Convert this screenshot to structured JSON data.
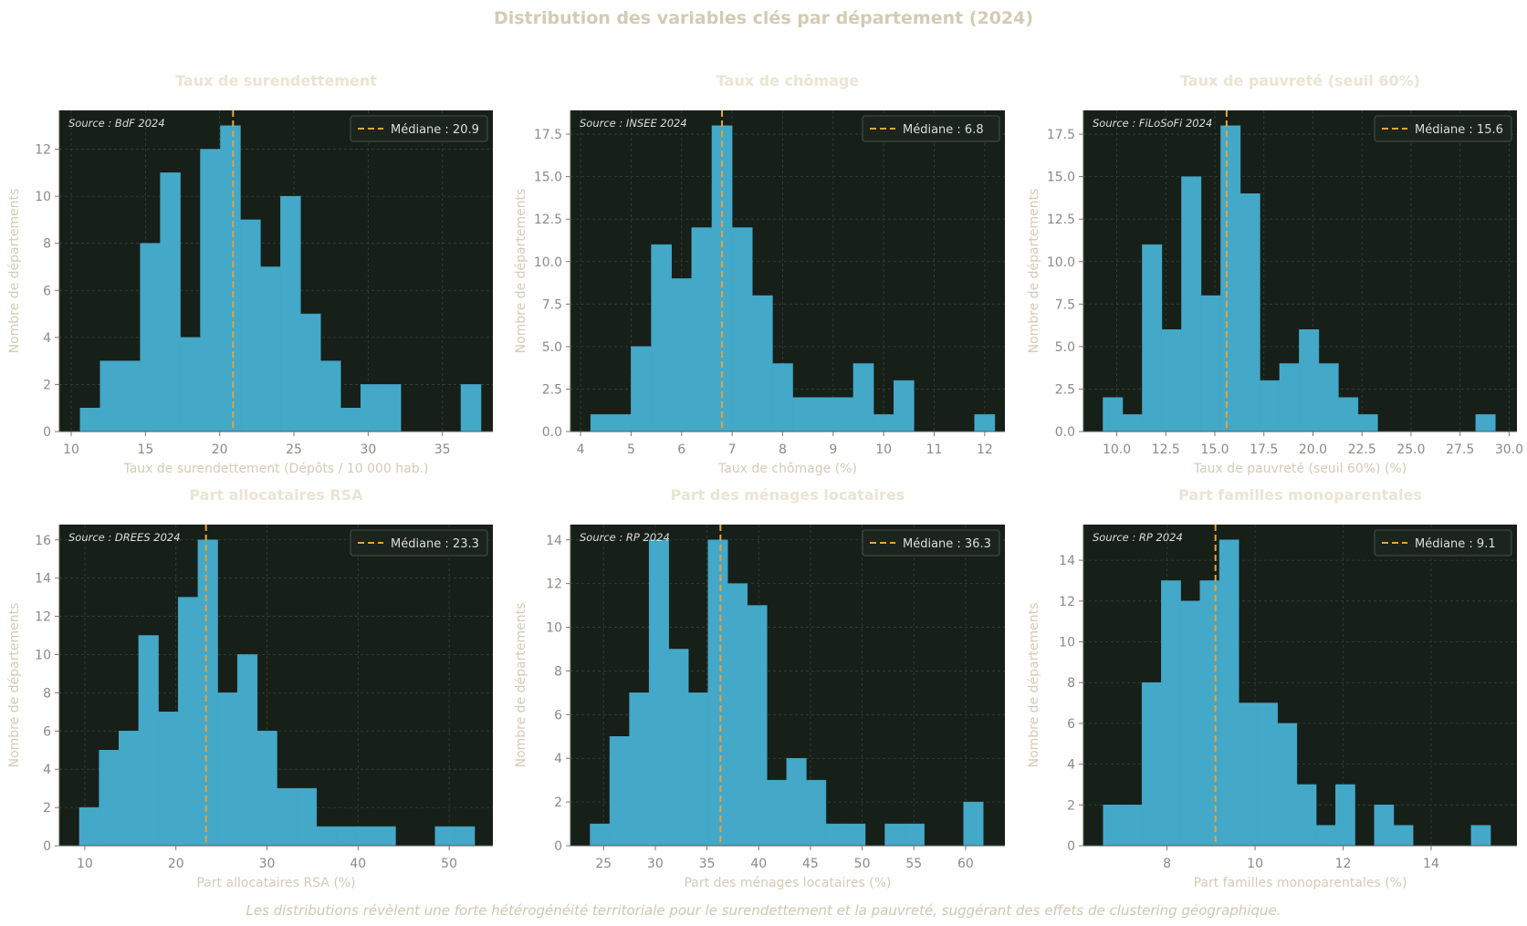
{
  "figure": {
    "suptitle": "Distribution des variables clés par département (2024)",
    "footnote": "Les distributions révèlent une forte hétérogénéité territoriale pour le surendettement et la pauvreté, suggérant des effets de clustering géographique.",
    "colors": {
      "panel_background": "#161f18",
      "bar_fill": "#44a8c8",
      "median_line": "#e8a33a",
      "grid": "#31473a",
      "tick_text": "#8a8a86",
      "label_text": "#d2cbb6",
      "title_text": "#ebe4d2",
      "legend_text": "#dddddd"
    }
  },
  "chart_data": [
    {
      "type": "histogram",
      "title": "Taux de surendettement",
      "xlabel": "Taux de surendettement (Dépôts / 10 000 hab.)",
      "ylabel": "Nombre de départements",
      "source": "Source : BdF 2024",
      "median": 20.9,
      "legend": "Médiane : 20.9",
      "legend_position": "top-right",
      "grid": true,
      "xlim": [
        9.2,
        38.4
      ],
      "ylim": [
        0,
        13.65
      ],
      "xticks": [
        10,
        15,
        20,
        25,
        30,
        35
      ],
      "yticks": [
        0,
        2,
        4,
        6,
        8,
        10,
        12
      ],
      "bin_edges": [
        10.6,
        11.95,
        13.3,
        14.65,
        16.0,
        17.35,
        18.7,
        20.05,
        21.4,
        22.75,
        24.1,
        25.45,
        26.8,
        28.15,
        29.5,
        30.85,
        32.2,
        33.55,
        34.9,
        36.25,
        37.6
      ],
      "counts": [
        1,
        3,
        3,
        8,
        11,
        4,
        12,
        13,
        9,
        7,
        10,
        5,
        3,
        1,
        2,
        2,
        0,
        0,
        0,
        2
      ]
    },
    {
      "type": "histogram",
      "title": "Taux de chômage",
      "xlabel": "Taux de chômage (%)",
      "ylabel": "Nombre de départements",
      "source": "Source : INSEE 2024",
      "median": 6.8,
      "legend": "Médiane : 6.8",
      "legend_position": "top-right",
      "grid": true,
      "xlim": [
        3.8,
        12.4
      ],
      "ylim": [
        0,
        18.9
      ],
      "xticks": [
        4,
        5,
        6,
        7,
        8,
        9,
        10,
        11,
        12
      ],
      "xtick_labels": [
        "4",
        "5",
        "6",
        "7",
        "8",
        "9",
        "10",
        "11",
        "12"
      ],
      "yticks": [
        0,
        2.5,
        5,
        7.5,
        10,
        12.5,
        15,
        17.5
      ],
      "ytick_labels": [
        "0.0",
        "2.5",
        "5.0",
        "7.5",
        "10.0",
        "12.5",
        "15.0",
        "17.5"
      ],
      "bin_edges": [
        4.2,
        4.6,
        5.0,
        5.4,
        5.8,
        6.2,
        6.6,
        7.0,
        7.4,
        7.8,
        8.2,
        8.6,
        9.0,
        9.4,
        9.8,
        10.2,
        10.6,
        11.0,
        11.4,
        11.8,
        12.2
      ],
      "counts": [
        1,
        1,
        5,
        11,
        9,
        12,
        18,
        12,
        8,
        4,
        2,
        2,
        2,
        4,
        1,
        3,
        0,
        0,
        0,
        1
      ]
    },
    {
      "type": "histogram",
      "title": "Taux de pauvreté (seuil 60%)",
      "xlabel": "Taux de pauvreté (seuil 60%) (%)",
      "ylabel": "Nombre de départements",
      "source": "Source : FiLoSoFi 2024",
      "median": 15.6,
      "legend": "Médiane : 15.6",
      "legend_position": "top-right",
      "grid": true,
      "xlim": [
        8.3,
        30.4
      ],
      "ylim": [
        0,
        18.9
      ],
      "xticks": [
        10,
        12.5,
        15,
        17.5,
        20,
        22.5,
        25,
        27.5,
        30
      ],
      "xtick_labels": [
        "10.0",
        "12.5",
        "15.0",
        "17.5",
        "20.0",
        "22.5",
        "25.0",
        "27.5",
        "30.0"
      ],
      "yticks": [
        0,
        2.5,
        5,
        7.5,
        10,
        12.5,
        15,
        17.5
      ],
      "ytick_labels": [
        "0.0",
        "2.5",
        "5.0",
        "7.5",
        "10.0",
        "12.5",
        "15.0",
        "17.5"
      ],
      "bin_edges": [
        9.3,
        10.3,
        11.3,
        12.3,
        13.3,
        14.3,
        15.3,
        16.3,
        17.3,
        18.3,
        19.3,
        20.3,
        21.3,
        22.3,
        23.3,
        24.3,
        25.3,
        26.3,
        27.3,
        28.3,
        29.3
      ],
      "counts": [
        2,
        1,
        11,
        6,
        15,
        8,
        18,
        14,
        3,
        4,
        6,
        4,
        2,
        1,
        0,
        0,
        0,
        0,
        0,
        1
      ]
    },
    {
      "type": "histogram",
      "title": "Part allocataires RSA",
      "xlabel": "Part allocataires RSA (%)",
      "ylabel": "Nombre de départements",
      "source": "Source : DREES 2024",
      "median": 23.3,
      "legend": "Médiane : 23.3",
      "legend_position": "top-right",
      "grid": true,
      "xlim": [
        7.2,
        54.8
      ],
      "ylim": [
        0,
        16.8
      ],
      "xticks": [
        10,
        20,
        30,
        40,
        50
      ],
      "yticks": [
        0,
        2,
        4,
        6,
        8,
        10,
        12,
        14,
        16
      ],
      "bin_edges": [
        9.4,
        11.57,
        13.74,
        15.91,
        18.08,
        20.25,
        22.42,
        24.59,
        26.76,
        28.93,
        31.1,
        33.27,
        35.44,
        37.61,
        39.78,
        41.95,
        44.12,
        46.29,
        48.46,
        50.63,
        52.8
      ],
      "counts": [
        2,
        5,
        6,
        11,
        7,
        13,
        16,
        8,
        10,
        6,
        3,
        3,
        1,
        1,
        1,
        1,
        0,
        0,
        1,
        1
      ]
    },
    {
      "type": "histogram",
      "title": "Part des ménages locataires",
      "xlabel": "Part des ménages locataires (%)",
      "ylabel": "Nombre de départements",
      "source": "Source : RP 2024",
      "median": 36.3,
      "legend": "Médiane : 36.3",
      "legend_position": "top-right",
      "grid": true,
      "xlim": [
        21.8,
        63.8
      ],
      "ylim": [
        0,
        14.7
      ],
      "xticks": [
        25,
        30,
        35,
        40,
        45,
        50,
        55,
        60
      ],
      "yticks": [
        0,
        2,
        4,
        6,
        8,
        10,
        12,
        14
      ],
      "bin_edges": [
        23.7,
        25.6,
        27.5,
        29.4,
        31.3,
        33.2,
        35.1,
        37.0,
        38.9,
        40.8,
        42.7,
        44.6,
        46.5,
        48.4,
        50.3,
        52.2,
        54.1,
        56.0,
        57.9,
        59.8,
        61.7
      ],
      "counts": [
        1,
        5,
        7,
        14,
        9,
        7,
        14,
        12,
        11,
        3,
        4,
        3,
        1,
        1,
        0,
        1,
        1,
        0,
        0,
        2
      ]
    },
    {
      "type": "histogram",
      "title": "Part familles monoparentales",
      "xlabel": "Part familles monoparentales (%)",
      "ylabel": "Nombre de départements",
      "source": "Source : RP 2024",
      "median": 9.1,
      "legend": "Médiane : 9.1",
      "legend_position": "top-right",
      "grid": true,
      "xlim": [
        6.1,
        15.95
      ],
      "ylim": [
        0,
        15.75
      ],
      "xticks": [
        8,
        10,
        12,
        14
      ],
      "yticks": [
        0,
        2,
        4,
        6,
        8,
        10,
        12,
        14
      ],
      "bin_edges": [
        6.55,
        6.99,
        7.43,
        7.87,
        8.31,
        8.75,
        9.19,
        9.63,
        10.07,
        10.51,
        10.95,
        11.39,
        11.83,
        12.27,
        12.71,
        13.15,
        13.59,
        14.03,
        14.47,
        14.91,
        15.35
      ],
      "counts": [
        2,
        2,
        8,
        13,
        12,
        13,
        15,
        7,
        7,
        6,
        3,
        1,
        3,
        0,
        2,
        1,
        0,
        0,
        0,
        1
      ]
    }
  ]
}
